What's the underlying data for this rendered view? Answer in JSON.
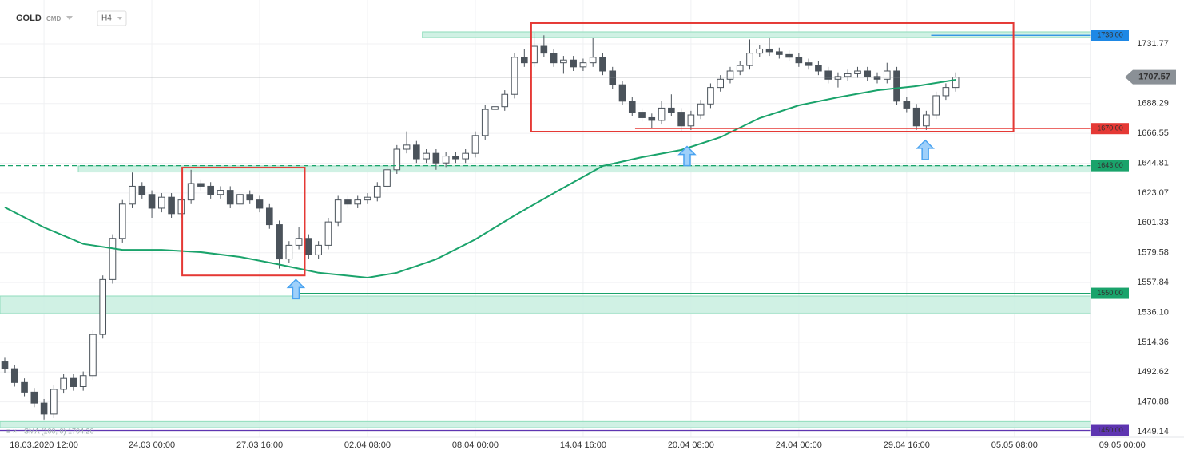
{
  "chart_data": {
    "type": "candlestick",
    "title": "GOLD",
    "market": "CMD",
    "interval": "H4",
    "indicator_label": "SMA (100, 0) 1704.20",
    "xlim": [
      -0.49,
      110.76
    ],
    "ylim": [
      1445.07,
      1763.75
    ],
    "xticks": [
      {
        "value": 4,
        "label": "18.03.2020  12:00"
      },
      {
        "value": 15,
        "label": "24.03  00:00"
      },
      {
        "value": 26,
        "label": "27.03  16:00"
      },
      {
        "value": 37,
        "label": "02.04  08:00"
      },
      {
        "value": 48,
        "label": "08.04  00:00"
      },
      {
        "value": 59,
        "label": "14.04  16:00"
      },
      {
        "value": 70,
        "label": "20.04  08:00"
      },
      {
        "value": 81,
        "label": "24.04  00:00"
      },
      {
        "value": 92,
        "label": "29.04  16:00"
      },
      {
        "value": 103,
        "label": "05.05  08:00"
      },
      {
        "value": 114,
        "label": "09.05  00:00"
      }
    ],
    "yticks": [
      1449.14,
      1470.88,
      1492.62,
      1514.36,
      {
        "value": 1536.1,
        "label": "1536.10"
      },
      1557.84,
      1579.58,
      1601.33,
      1623.07,
      1644.81,
      1666.55,
      1688.29,
      1731.77
    ],
    "grid": true,
    "up_color": "#ffffff",
    "down_color": "#4b535b",
    "ohlc": [
      [
        1500,
        1503,
        1492,
        1495
      ],
      [
        1495,
        1498,
        1482,
        1485
      ],
      [
        1485,
        1488,
        1475,
        1478
      ],
      [
        1478,
        1481,
        1467,
        1470
      ],
      [
        1470,
        1473,
        1458,
        1462
      ],
      [
        1462,
        1483,
        1459,
        1480
      ],
      [
        1480,
        1491,
        1477,
        1488
      ],
      [
        1488,
        1491,
        1479,
        1482
      ],
      [
        1482,
        1493,
        1479,
        1490
      ],
      [
        1490,
        1523,
        1487,
        1520
      ],
      [
        1520,
        1563,
        1517,
        1560
      ],
      [
        1560,
        1593,
        1557,
        1590
      ],
      [
        1590,
        1618,
        1587,
        1615
      ],
      [
        1615,
        1638,
        1612,
        1628
      ],
      [
        1628,
        1631,
        1619,
        1622
      ],
      [
        1622,
        1625,
        1605,
        1612
      ],
      [
        1612,
        1623,
        1609,
        1620
      ],
      [
        1620,
        1623,
        1605,
        1608
      ],
      [
        1608,
        1621,
        1605,
        1618
      ],
      [
        1618,
        1640,
        1615,
        1630
      ],
      [
        1630,
        1633,
        1625,
        1628
      ],
      [
        1628,
        1631,
        1619,
        1622
      ],
      [
        1622,
        1628,
        1619,
        1625
      ],
      [
        1625,
        1628,
        1612,
        1615
      ],
      [
        1615,
        1625,
        1612,
        1622
      ],
      [
        1622,
        1625,
        1615,
        1618
      ],
      [
        1618,
        1621,
        1609,
        1612
      ],
      [
        1612,
        1615,
        1597,
        1600
      ],
      [
        1600,
        1603,
        1568,
        1575
      ],
      [
        1575,
        1588,
        1572,
        1585
      ],
      [
        1585,
        1598,
        1582,
        1590
      ],
      [
        1590,
        1593,
        1575,
        1578
      ],
      [
        1578,
        1588,
        1575,
        1585
      ],
      [
        1585,
        1605,
        1582,
        1602
      ],
      [
        1602,
        1621,
        1599,
        1618
      ],
      [
        1618,
        1621,
        1612,
        1615
      ],
      [
        1615,
        1621,
        1612,
        1618
      ],
      [
        1618,
        1623,
        1615,
        1620
      ],
      [
        1620,
        1631,
        1617,
        1628
      ],
      [
        1628,
        1643,
        1625,
        1640
      ],
      [
        1640,
        1658,
        1637,
        1655
      ],
      [
        1655,
        1668,
        1652,
        1658
      ],
      [
        1658,
        1661,
        1645,
        1648
      ],
      [
        1648,
        1655,
        1645,
        1652
      ],
      [
        1652,
        1655,
        1640,
        1645
      ],
      [
        1645,
        1653,
        1642,
        1650
      ],
      [
        1650,
        1653,
        1645,
        1648
      ],
      [
        1648,
        1655,
        1645,
        1652
      ],
      [
        1652,
        1668,
        1649,
        1665
      ],
      [
        1665,
        1687,
        1662,
        1684
      ],
      [
        1684,
        1692,
        1681,
        1686
      ],
      [
        1686,
        1698,
        1683,
        1695
      ],
      [
        1695,
        1725,
        1692,
        1722
      ],
      [
        1722,
        1728,
        1715,
        1718
      ],
      [
        1718,
        1740,
        1715,
        1730
      ],
      [
        1730,
        1738,
        1722,
        1725
      ],
      [
        1725,
        1728,
        1715,
        1718
      ],
      [
        1718,
        1723,
        1710,
        1720
      ],
      [
        1720,
        1723,
        1712,
        1715
      ],
      [
        1715,
        1721,
        1712,
        1718
      ],
      [
        1718,
        1736,
        1715,
        1722
      ],
      [
        1722,
        1725,
        1709,
        1712
      ],
      [
        1712,
        1715,
        1699,
        1702
      ],
      [
        1702,
        1705,
        1687,
        1690
      ],
      [
        1690,
        1693,
        1679,
        1682
      ],
      [
        1682,
        1685,
        1675,
        1678
      ],
      [
        1678,
        1681,
        1670,
        1676
      ],
      [
        1676,
        1690,
        1673,
        1685
      ],
      [
        1685,
        1695,
        1679,
        1682
      ],
      [
        1682,
        1685,
        1668,
        1672
      ],
      [
        1672,
        1683,
        1669,
        1680
      ],
      [
        1680,
        1691,
        1677,
        1688
      ],
      [
        1688,
        1703,
        1685,
        1700
      ],
      [
        1700,
        1709,
        1697,
        1706
      ],
      [
        1706,
        1715,
        1703,
        1712
      ],
      [
        1712,
        1719,
        1709,
        1716
      ],
      [
        1716,
        1735,
        1713,
        1725
      ],
      [
        1725,
        1731,
        1722,
        1728
      ],
      [
        1728,
        1736,
        1723,
        1726
      ],
      [
        1726,
        1729,
        1721,
        1724
      ],
      [
        1724,
        1727,
        1719,
        1722
      ],
      [
        1722,
        1725,
        1715,
        1718
      ],
      [
        1718,
        1721,
        1713,
        1716
      ],
      [
        1716,
        1719,
        1709,
        1712
      ],
      [
        1712,
        1715,
        1703,
        1706
      ],
      [
        1706,
        1711,
        1700,
        1708
      ],
      [
        1708,
        1713,
        1705,
        1710
      ],
      [
        1710,
        1715,
        1707,
        1712
      ],
      [
        1712,
        1715,
        1705,
        1708
      ],
      [
        1708,
        1711,
        1703,
        1706
      ],
      [
        1706,
        1718,
        1703,
        1712
      ],
      [
        1712,
        1715,
        1687,
        1690
      ],
      [
        1690,
        1693,
        1682,
        1685
      ],
      [
        1685,
        1688,
        1669,
        1672
      ],
      [
        1672,
        1683,
        1669,
        1680
      ],
      [
        1680,
        1697,
        1677,
        1694
      ],
      [
        1694,
        1703,
        1691,
        1700
      ],
      [
        1700,
        1711,
        1697,
        1707.57
      ]
    ],
    "sma": {
      "color": "#1aa36b",
      "x": [
        0,
        4,
        8,
        12,
        16,
        20,
        24,
        28,
        32,
        37,
        40,
        44,
        48,
        52,
        57,
        61,
        65,
        69,
        73,
        77,
        81,
        85,
        89,
        93,
        97
      ],
      "values": [
        1612.6,
        1598,
        1586,
        1581.7,
        1581.7,
        1580,
        1576.5,
        1571,
        1565,
        1561.4,
        1565,
        1574.8,
        1589.3,
        1606.7,
        1627,
        1642.8,
        1649.2,
        1654.4,
        1663.7,
        1677.7,
        1687,
        1692.8,
        1698,
        1701,
        1705.6
      ]
    },
    "levels": [
      {
        "value": 1738,
        "label": "1738.00",
        "color": "#1e88e5",
        "line_from": 94.5,
        "zone": [
          1736.4,
          1740.5
        ],
        "zone_from": 42.6
      },
      {
        "value": 1707.57,
        "label": "1707.57",
        "color": "#8a9096",
        "line_from": -0.49
      },
      {
        "value": 1670,
        "label": "1670.00",
        "color": "#e53935",
        "line_from": 64.3
      },
      {
        "value": 1643,
        "label": "1643.00",
        "color": "#1aa36b",
        "line_from": -0.49,
        "dashed": true,
        "zone": [
          1638.4,
          1642.8
        ],
        "zone_from": 7.5
      },
      {
        "value": 1550,
        "label": "1550.00",
        "color": "#1aa36b",
        "line_from": 30.1,
        "zone": [
          1535.2,
          1548
        ],
        "zone_from": -0.49
      },
      {
        "value": 1450,
        "label": "1450.00",
        "color": "#5e35b1",
        "line_from": -0.49,
        "zone": [
          1452,
          1456.5
        ],
        "zone_from": -0.49
      }
    ],
    "boxes": [
      {
        "x": [
          18.1,
          30.6
        ],
        "y": [
          1563,
          1641.6
        ],
        "color": "#e53935"
      },
      {
        "x": [
          53.7,
          102.9
        ],
        "y": [
          1667.8,
          1746.9
        ],
        "color": "#e53935"
      }
    ],
    "arrows": [
      {
        "x": 29.7,
        "y": 1560,
        "color": "#4aa3f0"
      },
      {
        "x": 69.6,
        "y": 1657,
        "color": "#4aa3f0"
      },
      {
        "x": 93.9,
        "y": 1661.5,
        "color": "#4aa3f0"
      }
    ]
  }
}
